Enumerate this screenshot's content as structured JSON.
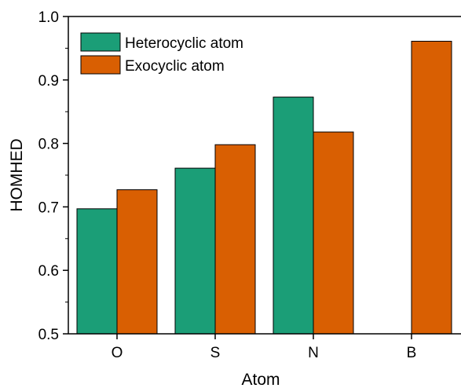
{
  "chart_data": {
    "type": "bar",
    "categories": [
      "O",
      "S",
      "N",
      "B"
    ],
    "series": [
      {
        "name": "Heterocyclic atom",
        "values": [
          0.697,
          0.761,
          0.873,
          null
        ],
        "color": "#1b9e77"
      },
      {
        "name": "Exocyclic atom",
        "values": [
          0.727,
          0.798,
          0.818,
          0.961
        ],
        "color": "#d95f02"
      }
    ],
    "xlabel": "Atom",
    "ylabel": "HOMHED",
    "ylim": [
      0.5,
      1.0
    ],
    "yticks": [
      "0.5",
      "0.6",
      "0.7",
      "0.8",
      "0.9",
      "1.0"
    ],
    "grid": false,
    "legend_position": "top-left"
  }
}
